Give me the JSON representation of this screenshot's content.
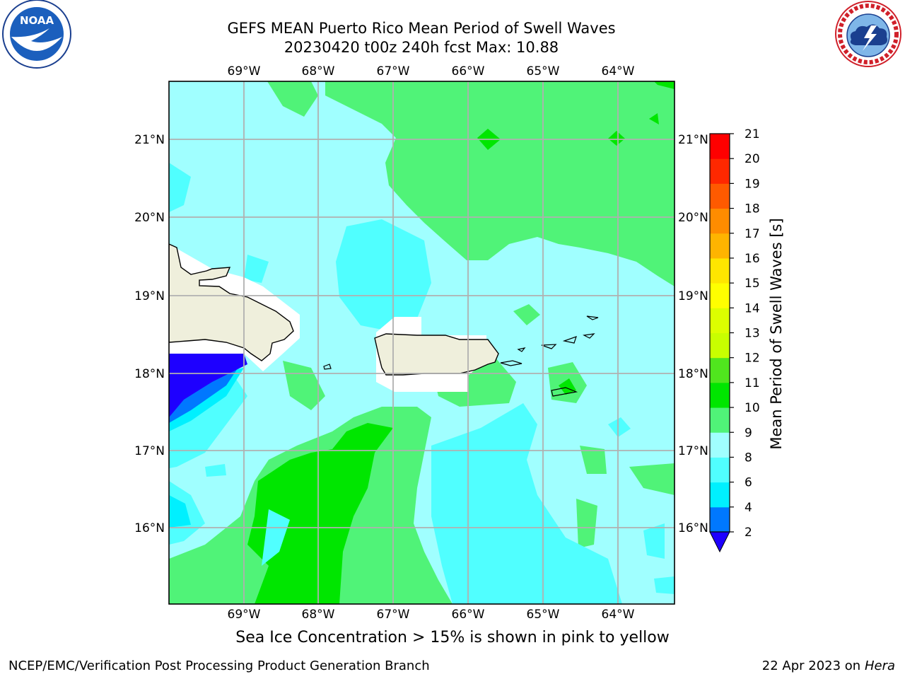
{
  "title_line1": "GEFS MEAN Puerto Rico Mean Period of Swell Waves",
  "title_line2": "20230420 t00z 240h fcst   Max: 10.88",
  "note": "Sea Ice Concentration > 15% is shown in pink to yellow",
  "footer_left": "NCEP/EMC/Verification Post Processing Product Generation Branch",
  "footer_right_date": "22 Apr 2023 on ",
  "footer_right_host": "Hera",
  "logos": {
    "left": "NOAA",
    "right": "NATIONAL WEATHER SERVICE"
  },
  "map": {
    "lon_labels": [
      "69°W",
      "68°W",
      "67°W",
      "66°W",
      "65°W",
      "64°W"
    ],
    "lat_labels": [
      "21°N",
      "20°N",
      "19°N",
      "18°N",
      "17°N",
      "16°N"
    ]
  },
  "colorbar": {
    "label": "Mean Period of Swell Waves [s]",
    "ticks": [
      "2",
      "4",
      "6",
      "8",
      "9",
      "10",
      "11",
      "12",
      "13",
      "14",
      "15",
      "16",
      "17",
      "18",
      "19",
      "20",
      "21"
    ],
    "colors": {
      "lt2": "#1e00ff",
      "2-4": "#0078ff",
      "4-6": "#00f0ff",
      "6-8": "#50ffff",
      "8-9": "#a0ffff",
      "9-10": "#50f378",
      "10-11": "#00e600",
      "11-12": "#50e61e",
      "12-13": "#c8ff00",
      "13-14": "#dcff00",
      "14-15": "#ffff00",
      "15-16": "#ffe600",
      "16-17": "#ffb400",
      "17-18": "#ff8c00",
      "18-19": "#ff5a00",
      "19-20": "#ff2800",
      "20-21": "#ff0000"
    }
  }
}
